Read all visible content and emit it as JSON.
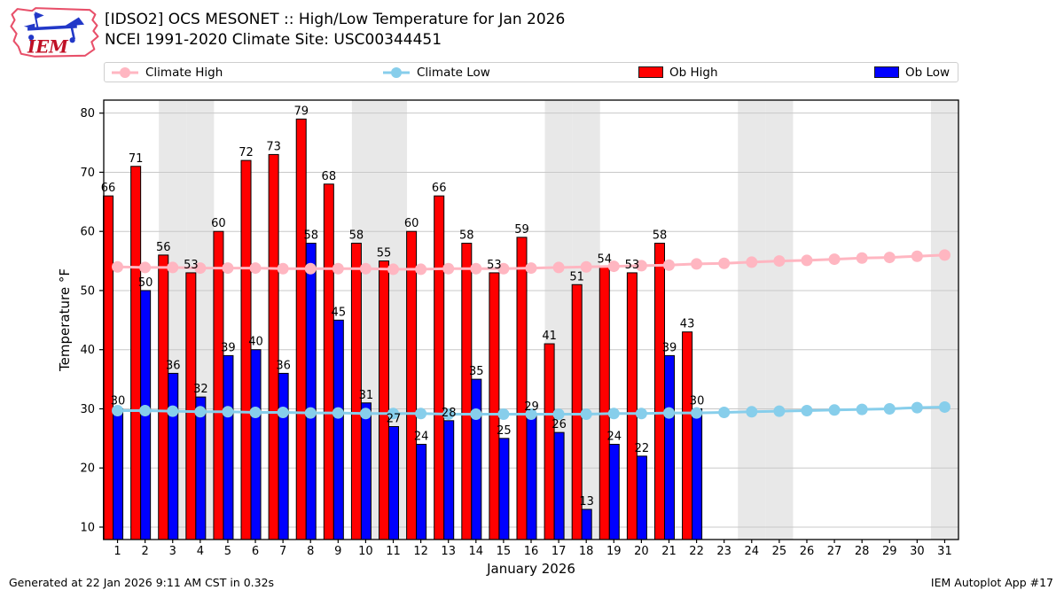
{
  "header": {
    "logo_text": "IEM",
    "title_line1": "[IDSO2] OCS MESONET :: High/Low Temperature for Jan 2026",
    "title_line2": "NCEI 1991-2020 Climate Site: USC00344451"
  },
  "legend": {
    "items": [
      {
        "label": "Climate High",
        "glyph": "line-marker",
        "color": "#ffb6c1"
      },
      {
        "label": "Climate Low",
        "glyph": "line-marker",
        "color": "#87ceeb"
      },
      {
        "label": "Ob High",
        "glyph": "swatch",
        "color": "#ff0000"
      },
      {
        "label": "Ob Low",
        "glyph": "swatch",
        "color": "#0000ff"
      }
    ]
  },
  "chart_data": {
    "type": "bar",
    "title": "[IDSO2] OCS MESONET :: High/Low Temperature for Jan 2026",
    "subtitle": "NCEI 1991-2020 Climate Site: USC00344451",
    "xlabel": "January 2026",
    "ylabel": "Temperature °F",
    "x": [
      1,
      2,
      3,
      4,
      5,
      6,
      7,
      8,
      9,
      10,
      11,
      12,
      13,
      14,
      15,
      16,
      17,
      18,
      19,
      20,
      21,
      22,
      23,
      24,
      25,
      26,
      27,
      28,
      29,
      30,
      31
    ],
    "series": [
      {
        "name": "Ob High",
        "type": "bar",
        "color": "#ff0000",
        "values": [
          66,
          71,
          56,
          53,
          60,
          72,
          73,
          79,
          68,
          58,
          55,
          60,
          66,
          58,
          53,
          59,
          41,
          51,
          54,
          53,
          58,
          43
        ]
      },
      {
        "name": "Ob Low",
        "type": "bar",
        "color": "#0000ff",
        "values": [
          30,
          50,
          36,
          32,
          39,
          40,
          36,
          58,
          45,
          31,
          27,
          24,
          28,
          35,
          25,
          29,
          26,
          13,
          24,
          22,
          39,
          30
        ]
      },
      {
        "name": "Climate High",
        "type": "line",
        "color": "#ffb6c1",
        "values": [
          54.0,
          53.9,
          53.9,
          53.8,
          53.8,
          53.8,
          53.7,
          53.7,
          53.7,
          53.7,
          53.6,
          53.6,
          53.7,
          53.7,
          53.7,
          53.8,
          53.9,
          54.0,
          54.1,
          54.2,
          54.3,
          54.5,
          54.6,
          54.8,
          55.0,
          55.1,
          55.3,
          55.5,
          55.6,
          55.8,
          56.0
        ]
      },
      {
        "name": "Climate Low",
        "type": "line",
        "color": "#87ceeb",
        "values": [
          29.7,
          29.7,
          29.6,
          29.5,
          29.5,
          29.4,
          29.4,
          29.3,
          29.3,
          29.2,
          29.2,
          29.2,
          29.1,
          29.1,
          29.1,
          29.1,
          29.1,
          29.1,
          29.2,
          29.2,
          29.3,
          29.3,
          29.4,
          29.5,
          29.6,
          29.7,
          29.8,
          29.9,
          30.0,
          30.2,
          30.3
        ]
      }
    ],
    "ylim": [
      7.9,
      82.2
    ],
    "yticks": [
      10,
      20,
      30,
      40,
      50,
      60,
      70,
      80
    ],
    "grid": "horizontal",
    "legend_position": "top",
    "weekend_shading_days": [
      3,
      4,
      10,
      11,
      17,
      18,
      24,
      25,
      31
    ],
    "colors": {
      "weekend_band": "#e8e8e8",
      "gridline": "#c8c8c8",
      "bar_edge": "#000000"
    }
  },
  "footer": {
    "left": "Generated at 22 Jan 2026 9:11 AM CST in 0.32s",
    "right": "IEM Autoplot App #17"
  }
}
